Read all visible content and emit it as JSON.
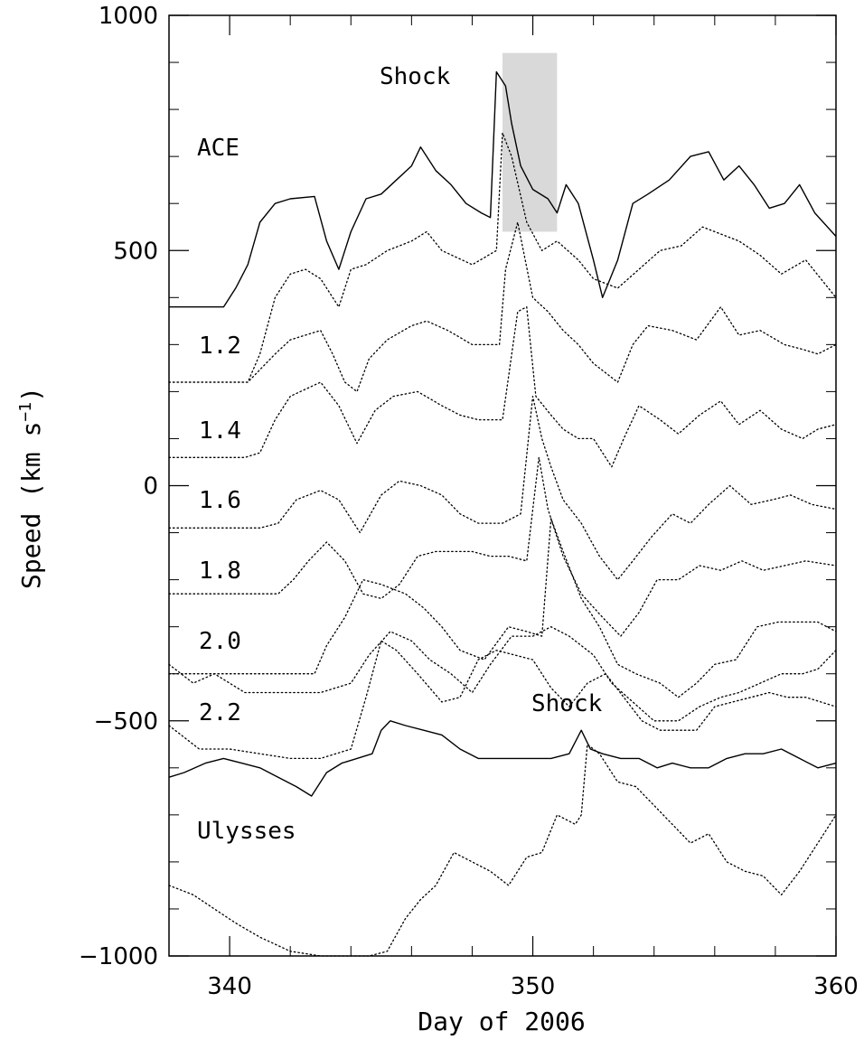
{
  "chart_data": {
    "type": "line",
    "xlabel": "Day of 2006",
    "ylabel": "Speed (km s",
    "ylabel_sup": "−1",
    "ylabel_close": ")",
    "xlim": [
      338,
      360
    ],
    "ylim": [
      -1000,
      1000
    ],
    "xticks": [
      340,
      350,
      360
    ],
    "yticks": [
      -1000,
      -500,
      0,
      500,
      1000
    ],
    "ytick_labels": [
      "−1000",
      "−500",
      "0",
      "500",
      "1000"
    ],
    "grid": false,
    "annotations": {
      "shock_top": "Shock",
      "shock_bottom": "Shock",
      "ace": "ACE",
      "ulysses": "Ulysses",
      "levels": [
        "1.2",
        "1.4",
        "1.6",
        "1.8",
        "2.0",
        "2.2"
      ]
    },
    "highlight": {
      "x": [
        349.0,
        350.8
      ],
      "y": [
        540,
        920
      ],
      "color": "#d9d9d9"
    },
    "series": [
      {
        "style": "solid",
        "x": [
          338.0,
          339.8,
          340.2,
          340.6,
          341.0,
          341.5,
          342.0,
          342.8,
          343.2,
          343.6,
          344.0,
          344.5,
          345.0,
          345.5,
          346.0,
          346.3,
          346.8,
          347.3,
          347.8,
          348.3,
          348.6,
          348.8,
          349.1,
          349.3,
          349.6,
          350.0,
          350.5,
          350.8,
          351.1,
          351.5,
          352.0,
          352.3,
          352.8,
          353.3,
          353.8,
          354.5,
          355.2,
          355.8,
          356.3,
          356.8,
          357.3,
          357.8,
          358.3,
          358.8,
          359.3,
          360.0
        ],
        "y": [
          380,
          380,
          420,
          470,
          560,
          600,
          610,
          615,
          520,
          460,
          540,
          610,
          620,
          650,
          680,
          720,
          670,
          640,
          600,
          580,
          570,
          880,
          850,
          770,
          680,
          630,
          610,
          580,
          640,
          600,
          480,
          400,
          480,
          600,
          620,
          650,
          700,
          710,
          650,
          680,
          640,
          590,
          600,
          640,
          580,
          530
        ]
      },
      {
        "style": "dotted",
        "x": [
          338.0,
          340.0,
          340.6,
          341.0,
          341.5,
          342.0,
          342.5,
          343.0,
          343.6,
          344.0,
          344.5,
          345.2,
          346.0,
          346.5,
          347.0,
          348.0,
          348.8,
          349.0,
          349.3,
          349.8,
          350.3,
          350.8,
          351.5,
          352.0,
          352.8,
          353.5,
          354.2,
          354.9,
          355.6,
          356.0,
          356.8,
          357.5,
          358.2,
          359.0,
          360.0
        ],
        "y": [
          220,
          220,
          220,
          280,
          400,
          450,
          460,
          440,
          380,
          460,
          470,
          500,
          520,
          540,
          500,
          470,
          500,
          750,
          700,
          560,
          500,
          520,
          480,
          440,
          420,
          460,
          500,
          510,
          550,
          540,
          520,
          490,
          450,
          480,
          400
        ]
      },
      {
        "style": "dotted",
        "x": [
          338.0,
          340.0,
          340.6,
          341.5,
          342.0,
          343.0,
          343.4,
          343.8,
          344.2,
          344.6,
          345.2,
          346.0,
          346.5,
          347.2,
          348.0,
          348.9,
          349.1,
          349.5,
          350.0,
          350.5,
          351.0,
          351.5,
          352.0,
          352.8,
          353.3,
          353.8,
          354.6,
          355.4,
          356.2,
          356.8,
          357.5,
          358.3,
          358.9,
          359.4,
          360.0
        ],
        "y": [
          220,
          220,
          220,
          280,
          310,
          330,
          280,
          220,
          200,
          270,
          310,
          340,
          350,
          330,
          300,
          300,
          460,
          560,
          400,
          370,
          330,
          300,
          260,
          220,
          300,
          340,
          330,
          310,
          380,
          320,
          330,
          300,
          290,
          280,
          300
        ]
      },
      {
        "style": "dotted",
        "x": [
          338.0,
          340.5,
          341.0,
          341.5,
          342.0,
          343.0,
          343.6,
          344.2,
          344.8,
          345.4,
          346.2,
          347.0,
          347.6,
          348.2,
          349.0,
          349.5,
          349.8,
          350.1,
          350.6,
          351.0,
          351.5,
          352.0,
          352.6,
          353.0,
          353.5,
          354.2,
          354.8,
          355.5,
          356.2,
          356.8,
          357.5,
          358.2,
          358.9,
          359.4,
          360.0
        ],
        "y": [
          60,
          60,
          70,
          140,
          190,
          220,
          170,
          90,
          160,
          190,
          200,
          170,
          150,
          140,
          140,
          370,
          380,
          190,
          150,
          120,
          100,
          100,
          40,
          100,
          170,
          140,
          110,
          150,
          180,
          130,
          160,
          120,
          100,
          120,
          130
        ]
      },
      {
        "style": "dotted",
        "x": [
          338.0,
          341.0,
          341.6,
          342.2,
          343.0,
          343.6,
          344.3,
          345.0,
          345.6,
          346.3,
          347.0,
          347.6,
          348.2,
          349.0,
          349.6,
          350.0,
          350.3,
          350.6,
          351.0,
          351.6,
          352.2,
          352.8,
          353.3,
          353.9,
          354.6,
          355.2,
          355.8,
          356.5,
          357.2,
          357.9,
          358.5,
          359.2,
          360.0
        ],
        "y": [
          -90,
          -90,
          -80,
          -30,
          -10,
          -30,
          -100,
          -20,
          10,
          0,
          -20,
          -60,
          -80,
          -80,
          -60,
          190,
          100,
          40,
          -30,
          -80,
          -150,
          -200,
          -160,
          -110,
          -60,
          -80,
          -40,
          0,
          -40,
          -30,
          -20,
          -40,
          -50
        ]
      },
      {
        "style": "dotted",
        "x": [
          338.0,
          341.6,
          342.1,
          342.6,
          343.2,
          343.8,
          344.4,
          345.0,
          345.6,
          346.2,
          346.8,
          347.4,
          348.0,
          348.6,
          349.2,
          349.8,
          350.2,
          350.5,
          351.0,
          351.6,
          352.3,
          352.9,
          353.5,
          354.1,
          354.8,
          355.5,
          356.2,
          356.9,
          357.6,
          358.3,
          359.0,
          360.0
        ],
        "y": [
          -230,
          -230,
          -200,
          -160,
          -120,
          -160,
          -230,
          -240,
          -210,
          -150,
          -140,
          -140,
          -140,
          -150,
          -150,
          -160,
          60,
          -50,
          -150,
          -230,
          -280,
          -320,
          -270,
          -200,
          -200,
          -170,
          -180,
          -160,
          -180,
          -170,
          -160,
          -170
        ]
      },
      {
        "style": "dotted",
        "x": [
          338.0,
          342.8,
          343.2,
          343.8,
          344.4,
          345.0,
          345.8,
          346.4,
          347.0,
          347.6,
          348.4,
          349.2,
          349.8,
          350.3,
          350.6,
          351.0,
          351.6,
          352.2,
          352.8,
          353.4,
          354.2,
          354.8,
          355.4,
          356.0,
          356.7,
          357.4,
          358.1,
          358.8,
          359.4,
          360.0
        ],
        "y": [
          -400,
          -400,
          -340,
          -280,
          -200,
          -210,
          -230,
          -260,
          -300,
          -350,
          -370,
          -300,
          -310,
          -320,
          -70,
          -140,
          -240,
          -300,
          -380,
          -400,
          -420,
          -450,
          -420,
          -380,
          -370,
          -300,
          -290,
          -290,
          -290,
          -310
        ]
      },
      {
        "style": "dotted",
        "x": [
          338.0,
          338.8,
          339.5,
          340.5,
          341.5,
          343.0,
          344.0,
          344.6,
          345.3,
          346.0,
          346.6,
          347.3,
          348.0,
          348.6,
          349.3,
          350.0,
          350.6,
          351.2,
          352.0,
          352.6,
          353.3,
          354.0,
          354.8,
          355.5,
          356.2,
          356.8,
          357.5,
          358.2,
          358.9,
          359.4,
          360.0
        ],
        "y": [
          -380,
          -420,
          -400,
          -440,
          -440,
          -440,
          -420,
          -360,
          -310,
          -330,
          -370,
          -400,
          -440,
          -380,
          -320,
          -320,
          -300,
          -320,
          -360,
          -420,
          -460,
          -500,
          -500,
          -470,
          -450,
          -440,
          -420,
          -400,
          -400,
          -390,
          -350
        ]
      },
      {
        "style": "dotted",
        "x": [
          338.0,
          339.0,
          340.0,
          341.0,
          342.0,
          343.0,
          344.0,
          344.5,
          345.0,
          345.5,
          346.2,
          347.0,
          347.6,
          348.2,
          348.8,
          349.4,
          350.0,
          350.6,
          351.2,
          351.8,
          352.4,
          353.0,
          353.6,
          354.2,
          354.8,
          355.4,
          356.0,
          356.6,
          357.2,
          357.8,
          358.4,
          359.0,
          360.0
        ],
        "y": [
          -510,
          -560,
          -560,
          -570,
          -580,
          -580,
          -560,
          -450,
          -330,
          -350,
          -400,
          -460,
          -450,
          -370,
          -350,
          -360,
          -370,
          -430,
          -470,
          -420,
          -400,
          -450,
          -500,
          -520,
          -520,
          -520,
          -470,
          -460,
          -450,
          -440,
          -450,
          -450,
          -470
        ]
      },
      {
        "style": "solid",
        "x": [
          338.0,
          338.5,
          339.2,
          339.8,
          340.4,
          341.0,
          341.6,
          342.2,
          342.7,
          343.2,
          343.7,
          344.2,
          344.7,
          345.0,
          345.3,
          345.8,
          346.4,
          347.0,
          347.6,
          348.2,
          348.8,
          349.4,
          350.0,
          350.6,
          351.2,
          351.6,
          351.9,
          352.3,
          352.9,
          353.5,
          354.1,
          354.6,
          355.2,
          355.8,
          356.4,
          357.0,
          357.6,
          358.2,
          358.8,
          359.4,
          360.0
        ],
        "y": [
          -620,
          -610,
          -590,
          -580,
          -590,
          -600,
          -620,
          -640,
          -660,
          -610,
          -590,
          -580,
          -570,
          -520,
          -500,
          -510,
          -520,
          -530,
          -560,
          -580,
          -580,
          -580,
          -580,
          -580,
          -570,
          -520,
          -560,
          -570,
          -580,
          -580,
          -600,
          -590,
          -600,
          -600,
          -580,
          -570,
          -570,
          -560,
          -580,
          -600,
          -590
        ]
      },
      {
        "style": "dotted",
        "x": [
          338.0,
          338.8,
          339.5,
          340.2,
          341.0,
          342.0,
          343.0,
          344.0,
          344.6,
          345.2,
          345.8,
          346.3,
          346.8,
          347.4,
          348.0,
          348.6,
          349.2,
          349.8,
          350.3,
          350.8,
          351.4,
          351.6,
          351.8,
          352.2,
          352.8,
          353.4,
          354.0,
          354.6,
          355.2,
          355.8,
          356.4,
          357.0,
          357.6,
          358.2,
          358.8,
          359.4,
          360.0
        ],
        "y": [
          -850,
          -870,
          -900,
          -930,
          -960,
          -990,
          -1000,
          -1000,
          -1000,
          -990,
          -920,
          -880,
          -850,
          -780,
          -800,
          -820,
          -850,
          -790,
          -780,
          -700,
          -720,
          -700,
          -550,
          -570,
          -630,
          -640,
          -680,
          -720,
          -760,
          -740,
          -800,
          -820,
          -830,
          -870,
          -820,
          -760,
          -700
        ]
      }
    ]
  }
}
